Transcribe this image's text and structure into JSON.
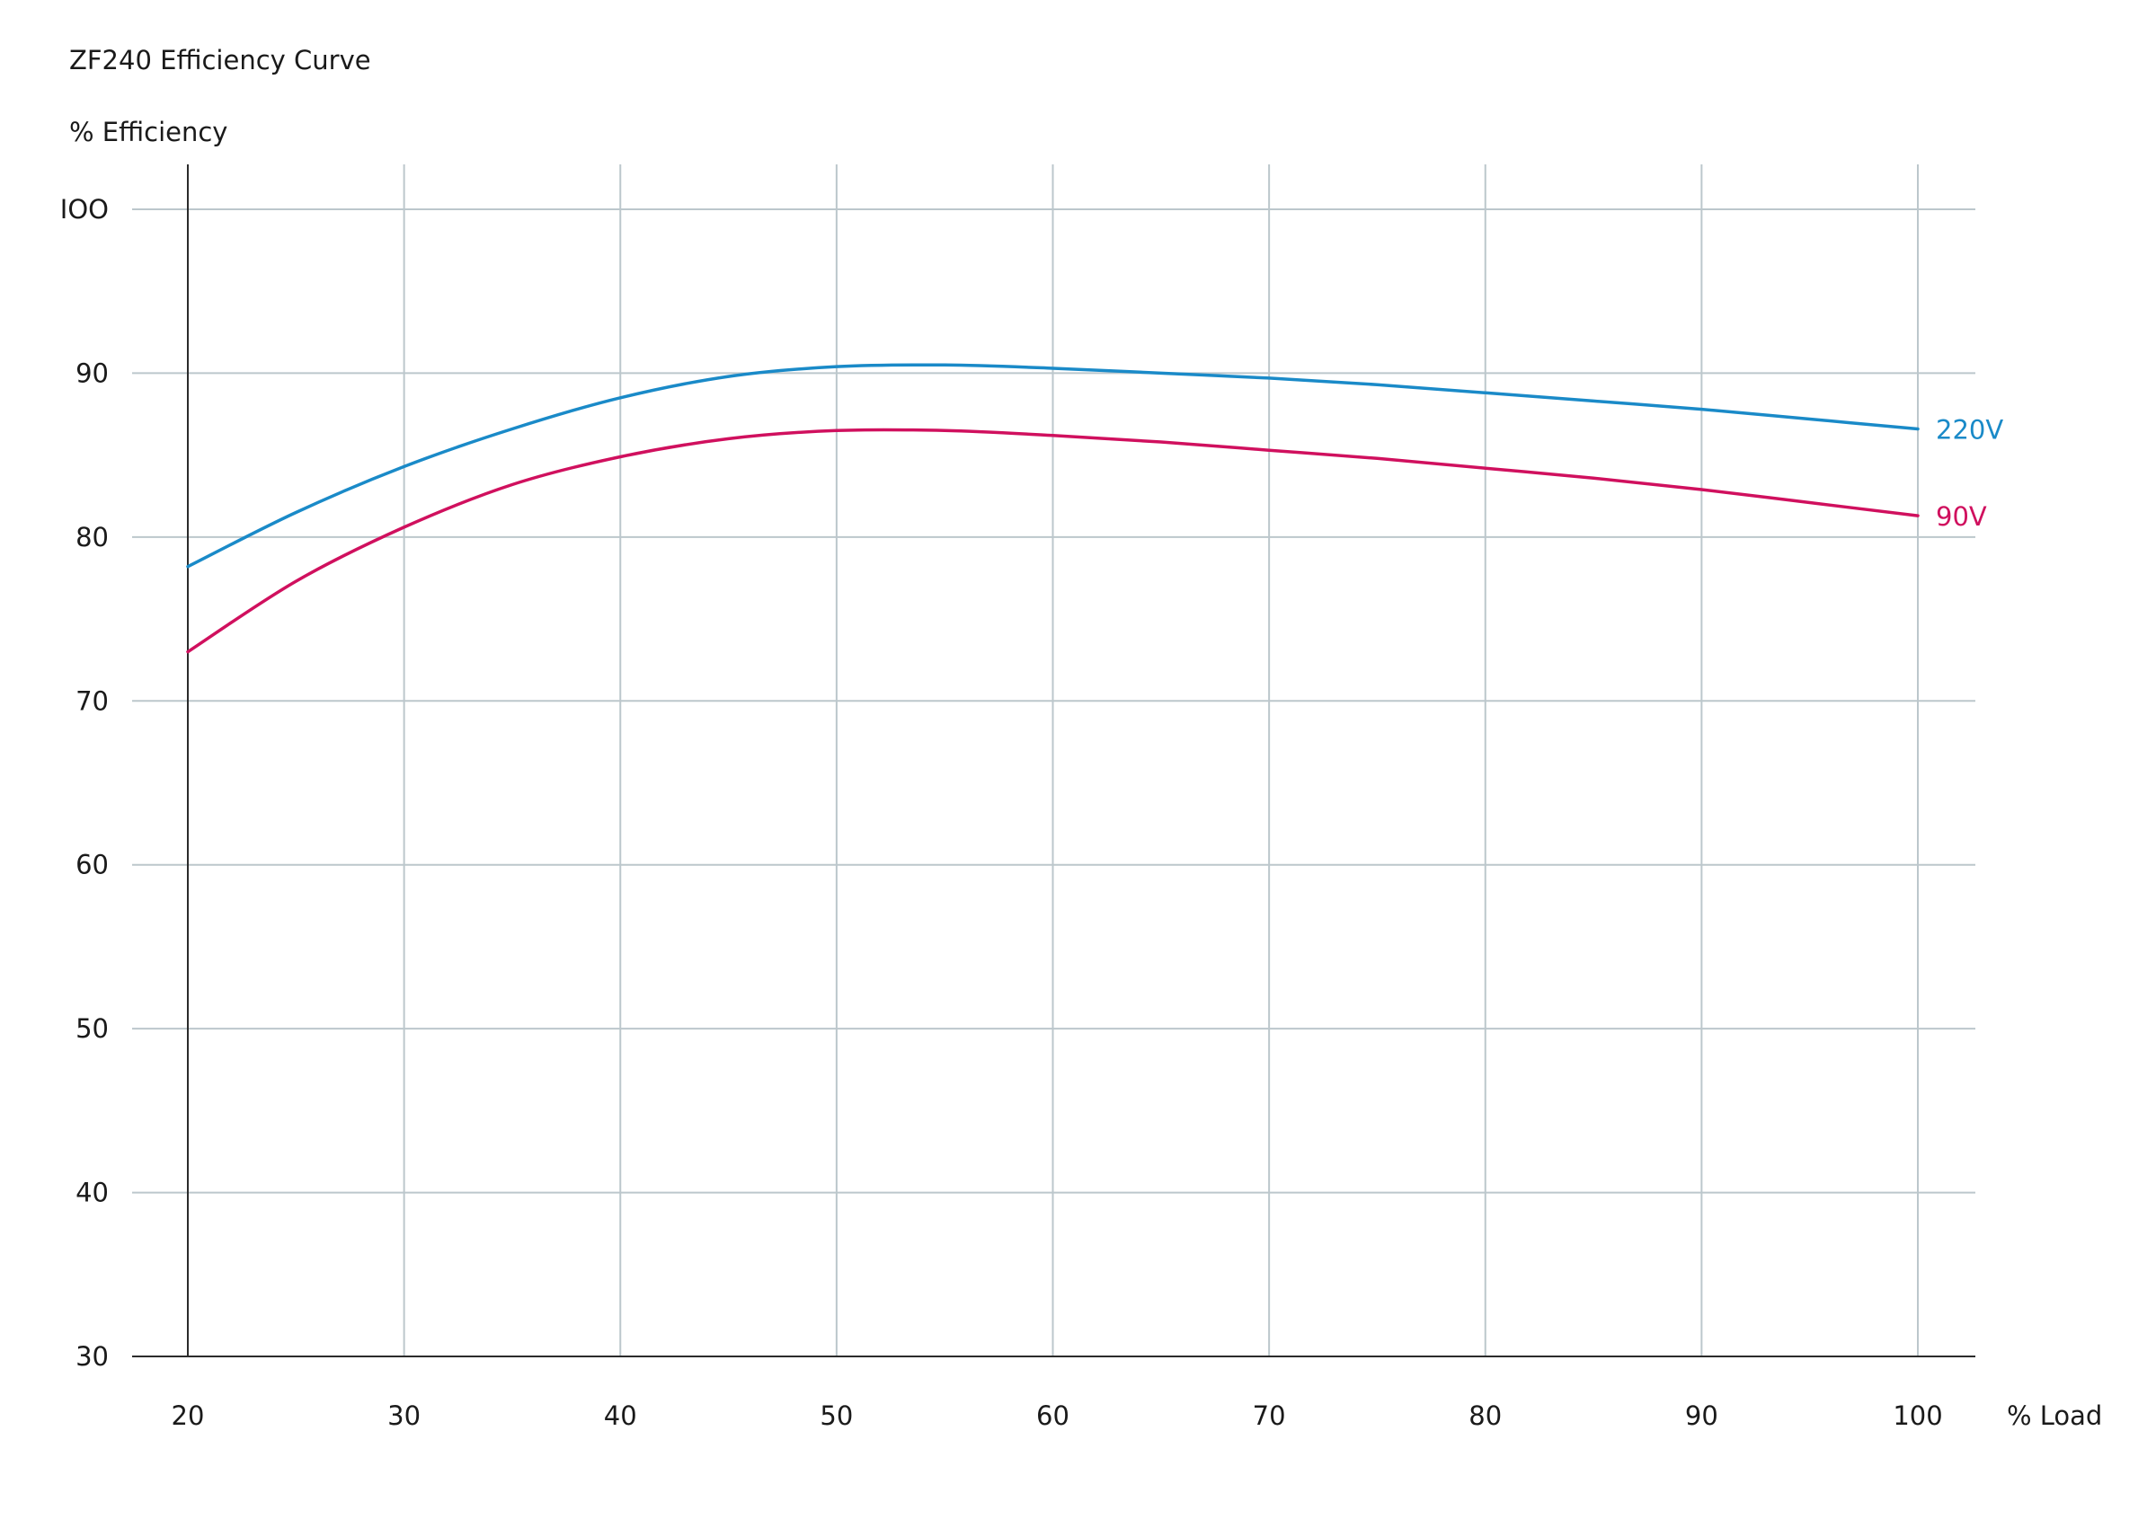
{
  "chart_data": {
    "type": "line",
    "title": "ZF240 Efficiency Curve",
    "ylabel": "% Efficiency",
    "xlabel": "% Load",
    "xlim": [
      20,
      100
    ],
    "ylim": [
      30,
      100
    ],
    "x_ticks": [
      20,
      30,
      40,
      50,
      60,
      70,
      80,
      90,
      100
    ],
    "y_ticks": [
      30,
      40,
      50,
      60,
      70,
      80,
      90,
      100
    ],
    "y_tick_labels": [
      "30",
      "40",
      "50",
      "60",
      "70",
      "80",
      "90",
      "IOO"
    ],
    "x_tick_labels": [
      "20",
      "30",
      "40",
      "50",
      "60",
      "70",
      "80",
      "90",
      "100"
    ],
    "grid": true,
    "series": [
      {
        "name": "220V",
        "color": "#1a8ac8",
        "x": [
          20,
          25,
          30,
          35,
          40,
          45,
          50,
          55,
          60,
          65,
          70,
          75,
          80,
          85,
          90,
          95,
          100
        ],
        "y": [
          78.2,
          81.5,
          84.3,
          86.6,
          88.5,
          89.8,
          90.4,
          90.5,
          90.3,
          90.0,
          89.7,
          89.3,
          88.8,
          88.3,
          87.8,
          87.2,
          86.6
        ]
      },
      {
        "name": "90V",
        "color": "#d0105e",
        "x": [
          20,
          25,
          30,
          35,
          40,
          45,
          50,
          55,
          60,
          65,
          70,
          75,
          80,
          85,
          90,
          95,
          100
        ],
        "y": [
          73.0,
          77.3,
          80.6,
          83.2,
          84.9,
          86.0,
          86.5,
          86.5,
          86.2,
          85.8,
          85.3,
          84.8,
          84.2,
          83.6,
          82.9,
          82.1,
          81.3
        ]
      }
    ]
  }
}
